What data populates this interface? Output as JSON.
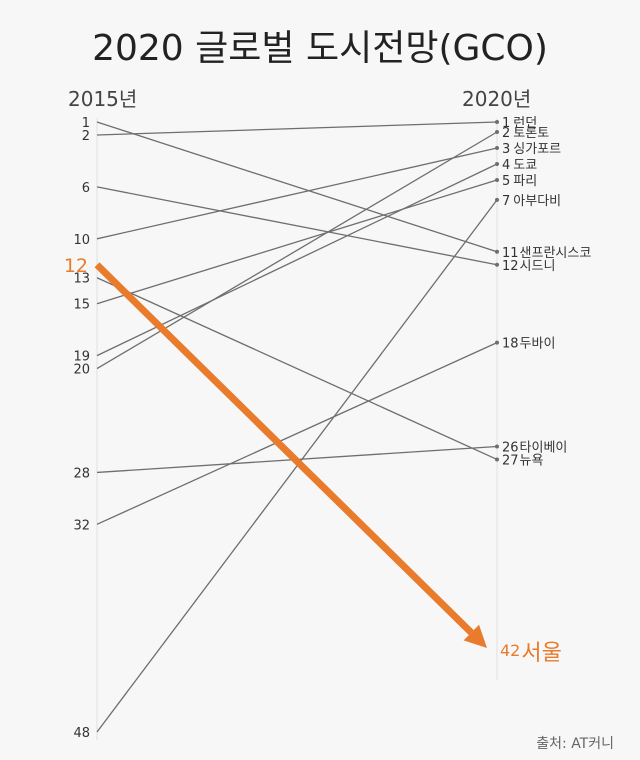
{
  "chart_data": {
    "type": "slope",
    "title": "2020 글로벌 도시전망(GCO)",
    "left_label": "2015년",
    "right_label": "2020년",
    "source": "출처: AT커니",
    "highlight_color": "#e87b2c",
    "line_color": "#6e6e6e",
    "left_ticks": [
      "1",
      "2",
      "6",
      "10",
      "12",
      "13",
      "15",
      "19",
      "20",
      "28",
      "32",
      "48"
    ],
    "right_ticks": [
      {
        "rank": "1",
        "city": "런던"
      },
      {
        "rank": "2",
        "city": "토론토"
      },
      {
        "rank": "3",
        "city": "싱가포르"
      },
      {
        "rank": "4",
        "city": "도쿄"
      },
      {
        "rank": "5",
        "city": "파리"
      },
      {
        "rank": "7",
        "city": "아부다비"
      },
      {
        "rank": "11",
        "city": "샌프란시스코"
      },
      {
        "rank": "12",
        "city": "시드니"
      },
      {
        "rank": "18",
        "city": "두바이"
      },
      {
        "rank": "26",
        "city": "타이베이"
      },
      {
        "rank": "27",
        "city": "뉴욕"
      },
      {
        "rank": "42",
        "city": "서울"
      }
    ],
    "series": [
      {
        "city": "런던",
        "rank_2015": 2,
        "rank_2020": 1
      },
      {
        "city": "샌프란시스코",
        "rank_2015": 1,
        "rank_2020": 11
      },
      {
        "city": "시드니",
        "rank_2015": 6,
        "rank_2020": 12
      },
      {
        "city": "싱가포르",
        "rank_2015": 10,
        "rank_2020": 3
      },
      {
        "city": "서울",
        "rank_2015": 12,
        "rank_2020": 42,
        "highlight": true
      },
      {
        "city": "파리",
        "rank_2015": 15,
        "rank_2020": 5
      },
      {
        "city": "뉴욕",
        "rank_2015": 13,
        "rank_2020": 27
      },
      {
        "city": "토론토",
        "rank_2015": 20,
        "rank_2020": 2
      },
      {
        "city": "도쿄",
        "rank_2015": 19,
        "rank_2020": 4
      },
      {
        "city": "타이베이",
        "rank_2015": 28,
        "rank_2020": 26
      },
      {
        "city": "두바이",
        "rank_2015": 32,
        "rank_2020": 18
      },
      {
        "city": "아부다비",
        "rank_2015": 48,
        "rank_2020": 7
      }
    ]
  }
}
